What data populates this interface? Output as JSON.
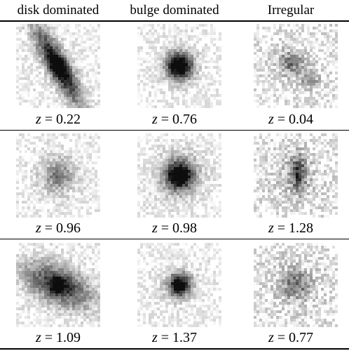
{
  "columns": [
    "disk dominated",
    "bulge dominated",
    "Irregular"
  ],
  "redshift_symbol": "z",
  "rows": [
    {
      "redshifts": [
        "0.22",
        "0.76",
        "0.04"
      ]
    },
    {
      "redshifts": [
        "0.96",
        "0.98",
        "1.28"
      ]
    },
    {
      "redshifts": [
        "1.09",
        "1.37",
        "0.77"
      ]
    }
  ]
}
